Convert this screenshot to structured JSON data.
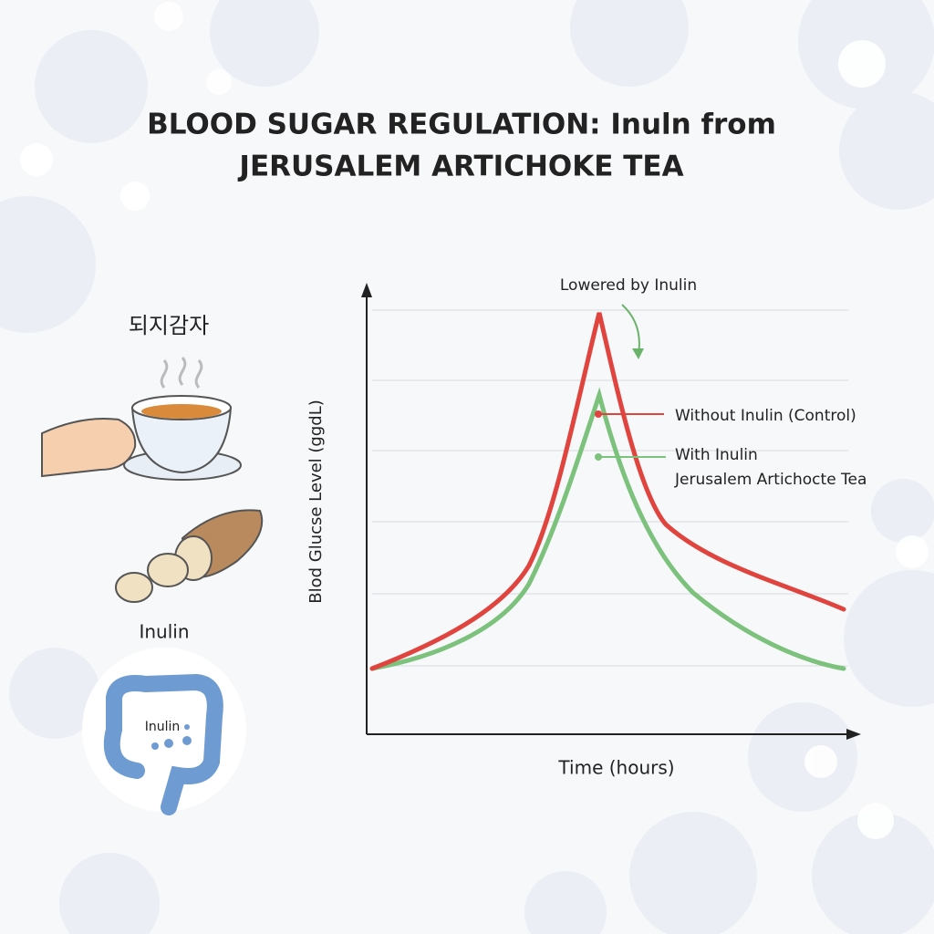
{
  "header": {
    "title_lines": [
      "BLOOD SUGAR REGULATION: Inuln from",
      "JERUSALEM ARTICHOKE TEA"
    ]
  },
  "illustration": {
    "plant_label": "되지감자",
    "inulin_label": "Inulin",
    "gut_label": "Inulin"
  },
  "graph": {
    "annotation": "Lowered by Inulin",
    "y_axis_label": "Blod Glucse Level (ggdL)",
    "x_axis_label": "Time (hours)",
    "control_label": "Without Inulin (Control)",
    "inulin_label_lines": [
      "With Inulin",
      "Jerusalem Artichocte Tea"
    ]
  }
}
